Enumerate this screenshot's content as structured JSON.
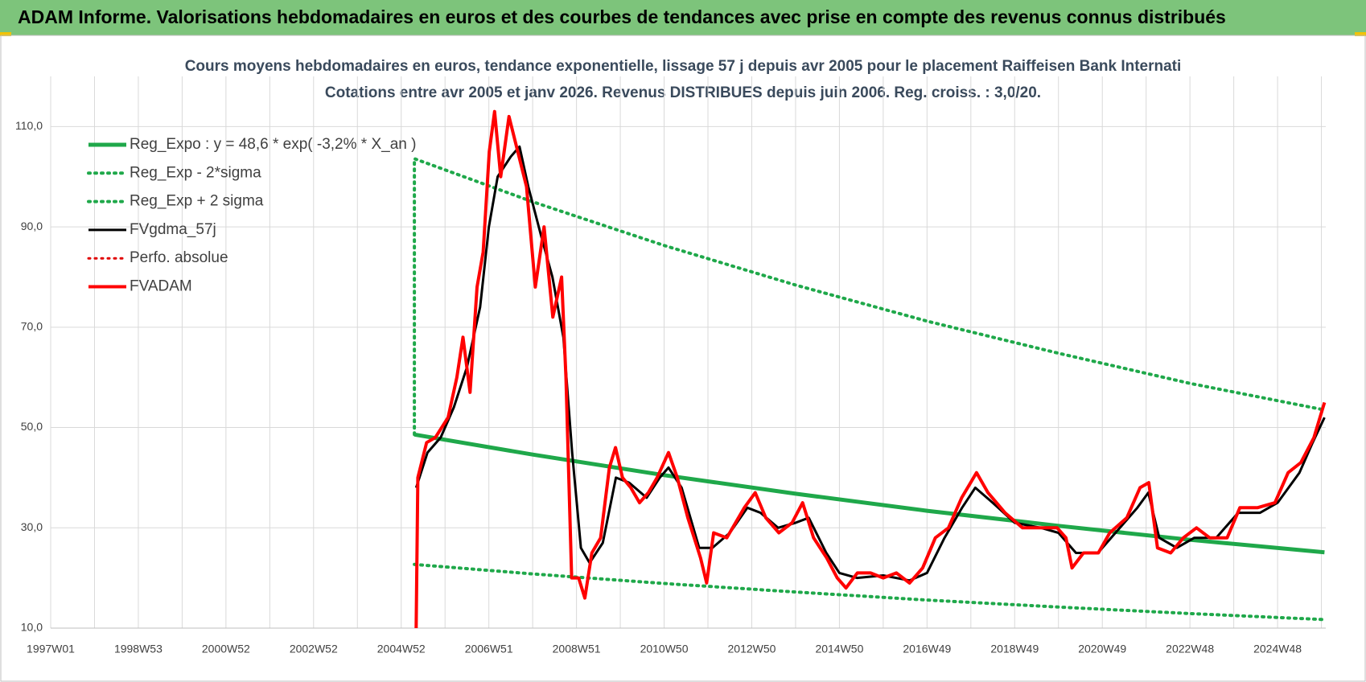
{
  "header": {
    "title": "ADAM Informe. Valorisations hebdomadaires en euros et des courbes de tendances avec prise en compte des revenus connus distribués"
  },
  "chart_data": {
    "type": "line",
    "title": "Cours moyens hebdomadaires en euros, tendance exponentielle, lissage 57 j depuis avr 2005 pour le placement Raiffeisen Bank Internati",
    "subtitle": "Cotations entre avr 2005 et janv 2026. Revenus DISTRIBUES depuis juin 2006. Reg. croiss. : 3,0/20.",
    "xlim": [
      1997,
      2026.1
    ],
    "xticks": [
      {
        "value": 1997,
        "label": "1997W01"
      },
      {
        "value": 1999,
        "label": "1998W53"
      },
      {
        "value": 2001,
        "label": "2000W52"
      },
      {
        "value": 2003,
        "label": "2002W52"
      },
      {
        "value": 2005,
        "label": "2004W52"
      },
      {
        "value": 2007,
        "label": "2006W51"
      },
      {
        "value": 2009,
        "label": "2008W51"
      },
      {
        "value": 2011,
        "label": "2010W50"
      },
      {
        "value": 2013,
        "label": "2012W50"
      },
      {
        "value": 2015,
        "label": "2014W50"
      },
      {
        "value": 2017,
        "label": "2016W49"
      },
      {
        "value": 2019,
        "label": "2018W49"
      },
      {
        "value": 2021,
        "label": "2020W49"
      },
      {
        "value": 2023,
        "label": "2022W48"
      },
      {
        "value": 2025,
        "label": "2024W48"
      }
    ],
    "xminorticks": [
      1998,
      2000,
      2002,
      2004,
      2006,
      2008,
      2010,
      2012,
      2014,
      2016,
      2018,
      2020,
      2022,
      2024,
      2026
    ],
    "ylim": [
      10,
      120
    ],
    "yticks": [
      {
        "value": 10,
        "label": "10,0"
      },
      {
        "value": 30,
        "label": "30,0"
      },
      {
        "value": 50,
        "label": "50,0"
      },
      {
        "value": 70,
        "label": "70,0"
      },
      {
        "value": 90,
        "label": "90,0"
      },
      {
        "value": 110,
        "label": "110,0"
      }
    ],
    "grid": true,
    "legend": "upper left",
    "series": [
      {
        "name": "Reg_Expo : y = 48,6 * exp( -3,2% *  X_an )",
        "color": "#1fa84a",
        "dash": false,
        "width": 5,
        "x": [
          2005.3,
          2008,
          2011,
          2014,
          2017,
          2020,
          2023,
          2026.07
        ],
        "values": [
          48.6,
          44.6,
          40.5,
          36.8,
          33.4,
          30.4,
          27.6,
          25.1
        ]
      },
      {
        "name": "Reg_Exp - 2*sigma",
        "color": "#1fa84a",
        "dash": true,
        "width": 4,
        "x": [
          2005.3,
          2008,
          2011,
          2014,
          2017,
          2020,
          2023,
          2026.07
        ],
        "values": [
          22.7,
          20.8,
          18.9,
          17.2,
          15.6,
          14.2,
          12.9,
          11.7
        ]
      },
      {
        "name": "Reg_Exp + 2 sigma",
        "color": "#1fa84a",
        "dash": true,
        "width": 4,
        "x": [
          2005.3,
          2005.3,
          2008,
          2011,
          2014,
          2017,
          2020,
          2023,
          2026.07
        ],
        "values": [
          48.6,
          103.6,
          95.0,
          86.3,
          78.4,
          71.2,
          64.8,
          58.8,
          53.5
        ]
      },
      {
        "name": "FVgdma_57j",
        "color": "#000000",
        "dash": false,
        "width": 3,
        "x": [
          2005.34,
          2005.6,
          2005.9,
          2006.2,
          2006.5,
          2006.8,
          2007.0,
          2007.2,
          2007.5,
          2007.7,
          2007.9,
          2008.2,
          2008.45,
          2008.7,
          2008.9,
          2009.1,
          2009.3,
          2009.6,
          2009.9,
          2010.2,
          2010.6,
          2010.9,
          2011.1,
          2011.4,
          2011.8,
          2012.1,
          2012.5,
          2012.9,
          2013.2,
          2013.6,
          2014.0,
          2014.3,
          2014.7,
          2015.0,
          2015.4,
          2016.0,
          2016.6,
          2017.0,
          2017.4,
          2017.8,
          2018.1,
          2018.5,
          2019.0,
          2019.6,
          2020.0,
          2020.4,
          2020.9,
          2021.3,
          2021.8,
          2022.05,
          2022.3,
          2022.7,
          2023.1,
          2023.6,
          2024.1,
          2024.6,
          2025.0,
          2025.5,
          2025.8,
          2026.07
        ],
        "values": [
          38,
          45,
          48,
          54,
          62,
          74,
          90,
          100,
          104,
          106,
          98,
          88,
          80,
          68,
          45,
          26,
          23,
          27,
          40,
          39,
          36,
          40,
          42,
          38,
          26,
          26,
          29,
          34,
          33,
          30,
          31,
          32,
          25,
          21,
          20,
          20.5,
          19.5,
          21,
          28,
          34,
          38,
          35,
          31,
          30,
          29,
          25,
          25,
          29,
          34,
          37,
          28,
          26,
          28,
          28,
          33,
          33,
          35,
          41,
          47,
          52
        ]
      },
      {
        "name": "Perfo. absolue",
        "color": "#e00000",
        "dash": true,
        "width": 3,
        "x": [],
        "values": []
      },
      {
        "name": "FVADAM",
        "color": "#ff0000",
        "dash": false,
        "width": 4,
        "x": [
          2005.34,
          2005.38,
          2005.58,
          2005.78,
          2006.07,
          2006.27,
          2006.41,
          2006.57,
          2006.73,
          2006.87,
          2007.01,
          2007.13,
          2007.27,
          2007.46,
          2007.66,
          2007.86,
          2008.06,
          2008.26,
          2008.46,
          2008.66,
          2008.76,
          2008.89,
          2009.05,
          2009.19,
          2009.35,
          2009.55,
          2009.75,
          2009.89,
          2010.05,
          2010.24,
          2010.44,
          2010.64,
          2010.84,
          2011.1,
          2011.3,
          2011.54,
          2011.83,
          2011.97,
          2012.13,
          2012.43,
          2012.83,
          2013.08,
          2013.32,
          2013.62,
          2013.92,
          2014.16,
          2014.41,
          2014.71,
          2014.95,
          2015.15,
          2015.41,
          2015.71,
          2016.0,
          2016.3,
          2016.6,
          2016.9,
          2017.19,
          2017.49,
          2017.79,
          2018.13,
          2018.39,
          2018.78,
          2019.18,
          2019.58,
          2019.97,
          2020.17,
          2020.31,
          2020.57,
          2020.91,
          2021.17,
          2021.56,
          2021.86,
          2022.06,
          2022.26,
          2022.56,
          2022.85,
          2023.15,
          2023.45,
          2023.85,
          2024.14,
          2024.54,
          2024.94,
          2025.24,
          2025.53,
          2025.83,
          2026.07
        ],
        "values": [
          10,
          40,
          47,
          48,
          52,
          60,
          68,
          57,
          78,
          85,
          105,
          113,
          100,
          112,
          105,
          98,
          78,
          90,
          72,
          80,
          60,
          20,
          20,
          16,
          25,
          28,
          42,
          46,
          40,
          38,
          35,
          37,
          40,
          45,
          40,
          32,
          24,
          19,
          29,
          28,
          34,
          37,
          32,
          29,
          31,
          35,
          28,
          24,
          20,
          18,
          21,
          21,
          20,
          21,
          19,
          22,
          28,
          30,
          36,
          41,
          37,
          33,
          30,
          30,
          30,
          28,
          22,
          25,
          25,
          29,
          32,
          38,
          39,
          26,
          25,
          28,
          30,
          28,
          28,
          34,
          34,
          35,
          41,
          43,
          48,
          55
        ]
      }
    ]
  }
}
